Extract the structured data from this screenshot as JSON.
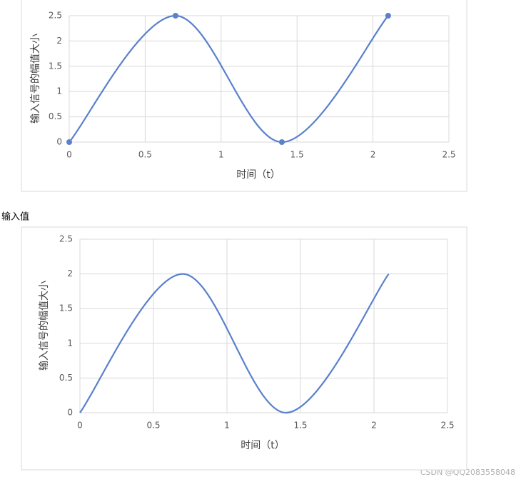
{
  "chart_data": [
    {
      "type": "line",
      "x": [
        0,
        0.7,
        1.4,
        2.1
      ],
      "values": [
        0,
        2.5,
        0,
        2.5
      ],
      "color": "#5b80cc",
      "smooth": true,
      "markers": true,
      "xlim": [
        0,
        2.5
      ],
      "xticks": [
        0,
        0.5,
        1,
        1.5,
        2,
        2.5
      ],
      "ylim": [
        0,
        2.5
      ],
      "yticks": [
        0,
        0.5,
        1,
        1.5,
        2,
        2.5
      ],
      "grid": true,
      "x_label": "时间（t）",
      "y_label": "输入信号的幅值大小"
    },
    {
      "type": "line",
      "x": [
        0,
        0.7,
        1.4,
        2.1
      ],
      "values": [
        0,
        2,
        0,
        2
      ],
      "color": "#5b80cc",
      "smooth": true,
      "markers": false,
      "xlim": [
        0,
        2.5
      ],
      "xticks": [
        0,
        0.5,
        1,
        1.5,
        2,
        2.5
      ],
      "ylim": [
        0,
        2.5
      ],
      "yticks": [
        0,
        0.5,
        1,
        1.5,
        2,
        2.5
      ],
      "grid": true,
      "x_label": "时间（t）",
      "y_label": "输入信号的幅值大小"
    }
  ],
  "between_text": "输入值",
  "watermark": "CSDN @QQ2083558048"
}
